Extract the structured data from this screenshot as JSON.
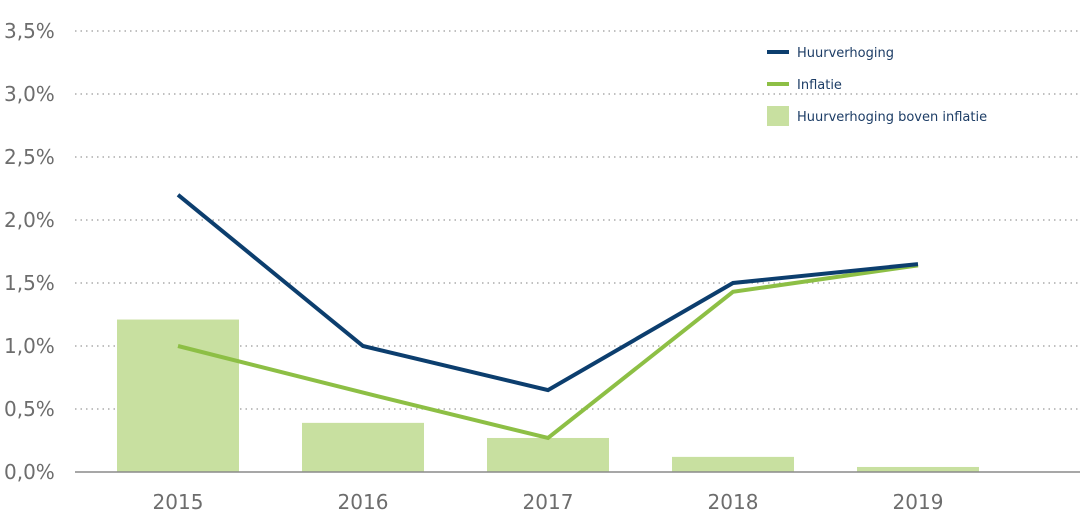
{
  "chart_data": {
    "type": "bar",
    "categories": [
      "2015",
      "2016",
      "2017",
      "2018",
      "2019"
    ],
    "y_tick_labels": [
      "0,0%",
      "0,5%",
      "1,0%",
      "1,5%",
      "2,0%",
      "2,5%",
      "3,0%",
      "3,5%"
    ],
    "ylim": [
      0,
      3.5
    ],
    "grid": "horizontal dotted",
    "legend_position": "top-right",
    "series": [
      {
        "name": "Huurverhoging",
        "kind": "line",
        "color": "#0c3e6e",
        "values": [
          2.2,
          1.0,
          0.65,
          1.5,
          1.65
        ]
      },
      {
        "name": "Inflatie",
        "kind": "line",
        "color": "#8dbf45",
        "values": [
          1.0,
          0.63,
          0.27,
          1.43,
          1.64
        ]
      },
      {
        "name": "Huurverhoging boven inflatie",
        "kind": "bar",
        "color": "#c8e0a0",
        "values": [
          1.21,
          0.39,
          0.27,
          0.12,
          0.04
        ]
      }
    ]
  }
}
